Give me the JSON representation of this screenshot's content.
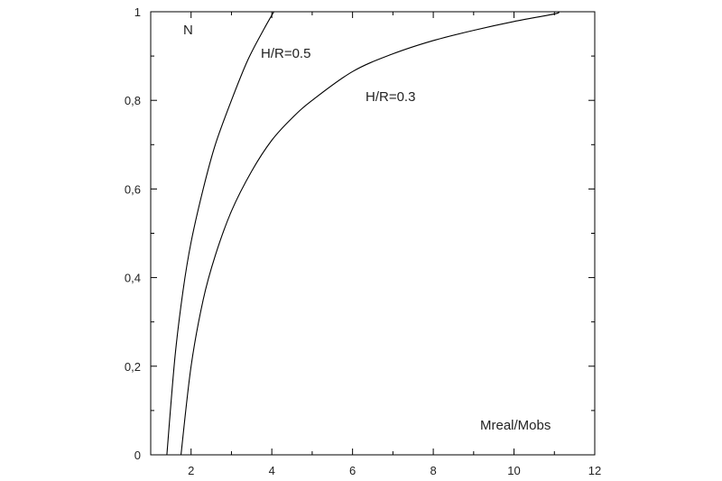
{
  "chart_data": {
    "type": "line",
    "title": "",
    "xlabel": "Mreal/Mobs",
    "ylabel": "N",
    "xlim": [
      1,
      12
    ],
    "ylim": [
      0,
      1
    ],
    "x_ticks": [
      2,
      4,
      6,
      8,
      10,
      12
    ],
    "y_ticks": [
      0,
      0.2,
      0.4,
      0.6,
      0.8,
      1
    ],
    "y_tick_labels": [
      "0",
      "0,2",
      "0,4",
      "0,6",
      "0,8",
      "1"
    ],
    "grid": false,
    "series": [
      {
        "name": "H/R=0.5",
        "x": [
          1.4,
          1.6,
          1.8,
          2.0,
          2.3,
          2.6,
          3.0,
          3.4,
          3.8,
          4.05
        ],
        "y": [
          0.0,
          0.22,
          0.37,
          0.48,
          0.6,
          0.7,
          0.8,
          0.89,
          0.96,
          1.0
        ]
      },
      {
        "name": "H/R=0.3",
        "x": [
          1.75,
          2.0,
          2.3,
          2.6,
          3.0,
          3.5,
          4.0,
          4.5,
          5.0,
          6.0,
          7.0,
          8.0,
          9.0,
          10.0,
          11.0,
          11.1
        ],
        "y": [
          0.0,
          0.2,
          0.35,
          0.45,
          0.55,
          0.64,
          0.71,
          0.76,
          0.8,
          0.865,
          0.905,
          0.935,
          0.958,
          0.978,
          0.995,
          1.0
        ]
      }
    ]
  }
}
